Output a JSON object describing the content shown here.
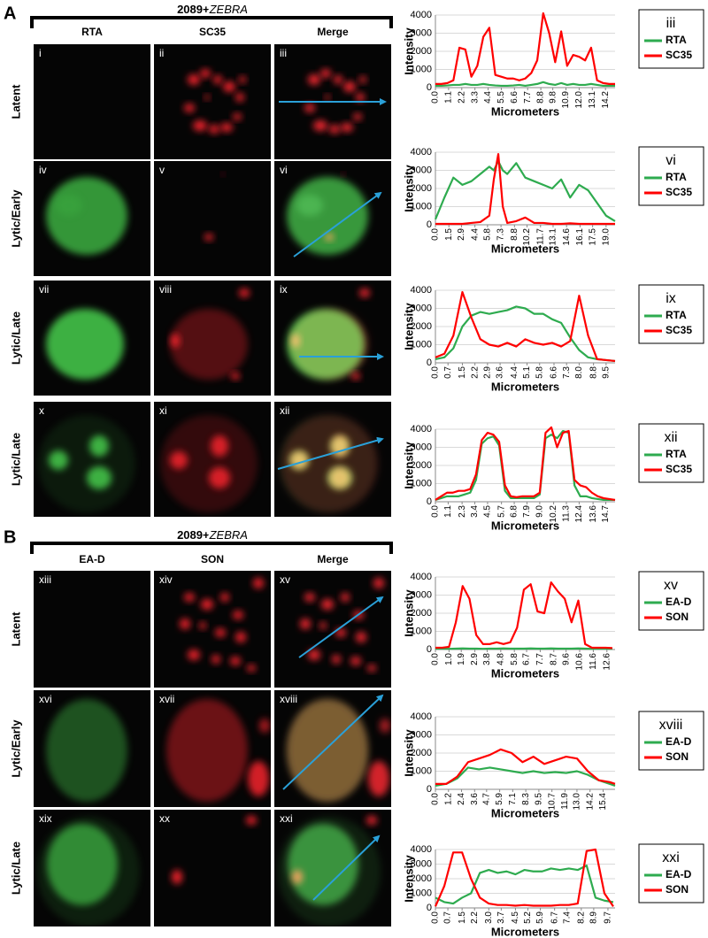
{
  "panel_a": {
    "letter": "A",
    "header_prefix": "2089+",
    "header_gene": "ZEBRA",
    "columns": [
      "RTA",
      "SC35",
      "Merge"
    ],
    "rows": [
      "Latent",
      "Lytic/Early",
      "Lytic/Late",
      "Lytic/Late"
    ],
    "image_labels": [
      [
        "i",
        "ii",
        "iii"
      ],
      [
        "iv",
        "v",
        "vi"
      ],
      [
        "vii",
        "viii",
        "ix"
      ],
      [
        "x",
        "xi",
        "xii"
      ]
    ]
  },
  "panel_b": {
    "letter": "B",
    "header_prefix": "2089+",
    "header_gene": "ZEBRA",
    "columns": [
      "EA-D",
      "SON",
      "Merge"
    ],
    "rows": [
      "Latent",
      "Lytic/Early",
      "Lytic/Late"
    ],
    "image_labels": [
      [
        "xiii",
        "xiv",
        "xv"
      ],
      [
        "xvi",
        "xvii",
        "xviii"
      ],
      [
        "xix",
        "xx",
        "xxi"
      ]
    ]
  },
  "chart_data": [
    {
      "type": "line",
      "title": "iii",
      "x_label": "Micrometers",
      "y_label": "Intensity",
      "x": [
        0,
        0.5,
        1,
        1.5,
        2,
        2.5,
        3,
        3.5,
        4,
        4.5,
        5,
        5.5,
        6,
        6.5,
        7,
        7.5,
        8,
        8.5,
        9,
        9.5,
        10,
        10.5,
        11,
        11.5,
        12,
        12.5,
        13,
        13.5,
        14,
        14.5,
        15
      ],
      "xlim": [
        0,
        15
      ],
      "xticks": [
        {
          "value": 0,
          "label": "0.0"
        },
        1.1,
        2.2,
        3.3,
        4.4,
        5.5,
        6.6,
        7.7,
        8.8,
        9.8,
        10.9,
        {
          "value": 12,
          "label": "12.0"
        },
        13.1,
        14.2
      ],
      "ylim": [
        0,
        4000
      ],
      "yticks": [
        0,
        1000,
        2000,
        3000,
        4000
      ],
      "grid": true,
      "series": [
        {
          "name": "RTA",
          "color": "#2eab4f",
          "values": [
            100,
            100,
            120,
            150,
            150,
            200,
            150,
            150,
            200,
            150,
            120,
            100,
            100,
            120,
            150,
            100,
            150,
            200,
            300,
            200,
            150,
            250,
            150,
            200,
            150,
            150,
            200,
            150,
            100,
            100,
            100
          ]
        },
        {
          "name": "SC35",
          "color": "#ff0000",
          "values": [
            200,
            200,
            250,
            400,
            2200,
            2100,
            600,
            1200,
            2800,
            3300,
            700,
            600,
            500,
            500,
            400,
            500,
            800,
            1500,
            4100,
            3000,
            1400,
            3100,
            1200,
            1800,
            1700,
            1500,
            2200,
            400,
            250,
            200,
            200
          ]
        }
      ]
    },
    {
      "type": "line",
      "title": "vi",
      "x_label": "Micrometers",
      "y_label": "Intensity",
      "x": [
        0,
        1,
        2,
        3,
        4,
        5,
        6,
        6.5,
        7,
        7.5,
        8,
        9,
        10,
        11,
        12,
        13,
        14,
        15,
        16,
        17,
        18,
        19,
        20
      ],
      "xlim": [
        0,
        20
      ],
      "xticks": [
        {
          "value": 0,
          "label": "0.0"
        },
        1.5,
        2.9,
        4.4,
        5.8,
        7.3,
        8.8,
        10.2,
        11.7,
        13.1,
        14.6,
        16.1,
        17.5,
        {
          "value": 19,
          "label": "19.0"
        }
      ],
      "ylim": [
        0,
        4000
      ],
      "yticks": [
        0,
        1000,
        2000,
        3000,
        4000
      ],
      "grid": true,
      "series": [
        {
          "name": "RTA",
          "color": "#2eab4f",
          "values": [
            300,
            1500,
            2600,
            2200,
            2400,
            2800,
            3200,
            3000,
            3500,
            3000,
            2800,
            3400,
            2600,
            2400,
            2200,
            2000,
            2500,
            1500,
            2200,
            1900,
            1200,
            500,
            200
          ]
        },
        {
          "name": "SC35",
          "color": "#ff0000",
          "values": [
            50,
            50,
            50,
            50,
            100,
            150,
            500,
            2500,
            3900,
            1000,
            100,
            200,
            400,
            100,
            100,
            50,
            50,
            80,
            50,
            50,
            50,
            50,
            50
          ]
        }
      ]
    },
    {
      "type": "line",
      "title": "ix",
      "x_label": "Micrometers",
      "y_label": "Intensity",
      "x": [
        0,
        0.5,
        1,
        1.5,
        2,
        2.5,
        3,
        3.5,
        4,
        4.5,
        5,
        5.5,
        6,
        6.5,
        7,
        7.5,
        8,
        8.5,
        9,
        9.5,
        10
      ],
      "xlim": [
        0,
        10
      ],
      "xticks": [
        {
          "value": 0,
          "label": "0.0"
        },
        0.7,
        1.5,
        2.2,
        2.9,
        3.6,
        4.4,
        5.1,
        5.8,
        6.6,
        7.3,
        {
          "value": 8,
          "label": "8.0"
        },
        8.8,
        9.5
      ],
      "ylim": [
        0,
        4000
      ],
      "yticks": [
        0,
        1000,
        2000,
        3000,
        4000
      ],
      "grid": true,
      "series": [
        {
          "name": "RTA",
          "color": "#2eab4f",
          "values": [
            200,
            300,
            800,
            2000,
            2600,
            2800,
            2700,
            2800,
            2900,
            3100,
            3000,
            2700,
            2700,
            2400,
            2200,
            1400,
            700,
            300,
            200,
            150,
            100
          ]
        },
        {
          "name": "SC35",
          "color": "#ff0000",
          "values": [
            300,
            500,
            1500,
            3900,
            2500,
            1300,
            1000,
            900,
            1100,
            900,
            1300,
            1100,
            1000,
            1100,
            900,
            1200,
            3700,
            1500,
            200,
            150,
            100
          ]
        }
      ]
    },
    {
      "type": "line",
      "title": "xii",
      "x_label": "Micrometers",
      "y_label": "Intensity",
      "x": [
        0,
        0.5,
        1,
        1.5,
        2,
        2.5,
        3,
        3.5,
        4,
        4.5,
        5,
        5.5,
        6,
        6.5,
        7,
        7.5,
        8,
        8.5,
        9,
        9.5,
        10,
        10.5,
        11,
        11.5,
        12,
        12.5,
        13,
        13.5,
        14,
        14.5,
        15,
        15.5
      ],
      "xlim": [
        0,
        15.5
      ],
      "xticks": [
        {
          "value": 0,
          "label": "0.0"
        },
        1.1,
        2.3,
        3.4,
        4.5,
        5.7,
        6.8,
        7.9,
        {
          "value": 9,
          "label": "9.0"
        },
        10.2,
        11.3,
        12.4,
        13.6,
        14.7
      ],
      "ylim": [
        0,
        4000
      ],
      "yticks": [
        0,
        1000,
        2000,
        3000,
        4000
      ],
      "grid": true,
      "series": [
        {
          "name": "RTA",
          "color": "#2eab4f",
          "values": [
            100,
            200,
            300,
            300,
            300,
            400,
            500,
            1200,
            3200,
            3500,
            3600,
            3100,
            600,
            200,
            200,
            200,
            200,
            200,
            400,
            3500,
            3700,
            3500,
            3900,
            3800,
            900,
            300,
            300,
            200,
            150,
            100,
            100,
            100
          ]
        },
        {
          "name": "SC35",
          "color": "#ff0000",
          "values": [
            100,
            300,
            500,
            500,
            600,
            600,
            700,
            1500,
            3400,
            3800,
            3700,
            3300,
            900,
            300,
            250,
            300,
            300,
            300,
            500,
            3800,
            4100,
            3000,
            3800,
            3900,
            1200,
            900,
            800,
            500,
            300,
            200,
            150,
            100
          ]
        }
      ]
    },
    {
      "type": "line",
      "title": "xv",
      "x_label": "Micrometers",
      "y_label": "Intensity",
      "x": [
        0,
        0.5,
        1,
        1.5,
        2,
        2.5,
        3,
        3.5,
        4,
        4.5,
        5,
        5.5,
        6,
        6.5,
        7,
        7.5,
        8,
        8.5,
        9,
        9.5,
        10,
        10.5,
        11,
        11.5,
        12,
        12.5,
        13
      ],
      "xlim": [
        0,
        13.2
      ],
      "xticks": [
        {
          "value": 0,
          "label": "0.0"
        },
        {
          "value": 1,
          "label": "1.0"
        },
        1.9,
        2.9,
        3.8,
        4.8,
        5.8,
        6.7,
        7.7,
        8.7,
        9.6,
        10.6,
        11.6,
        12.6
      ],
      "ylim": [
        0,
        4000
      ],
      "yticks": [
        0,
        1000,
        2000,
        3000,
        4000
      ],
      "grid": true,
      "series": [
        {
          "name": "EA-D",
          "color": "#2eab4f",
          "values": [
            50,
            50,
            40,
            50,
            60,
            50,
            50,
            40,
            50,
            50,
            60,
            50,
            50,
            50,
            60,
            50,
            50,
            60,
            50,
            50,
            50,
            60,
            50,
            40,
            50,
            50,
            40
          ]
        },
        {
          "name": "SON",
          "color": "#ff0000",
          "values": [
            100,
            100,
            150,
            1500,
            3500,
            2800,
            800,
            300,
            300,
            400,
            300,
            400,
            1200,
            3300,
            3600,
            2100,
            2000,
            3700,
            3200,
            2800,
            1500,
            2700,
            300,
            100,
            100,
            100,
            80
          ]
        }
      ]
    },
    {
      "type": "line",
      "title": "xviii",
      "x_label": "Micrometers",
      "y_label": "Intensity",
      "x": [
        0,
        1,
        2,
        3,
        4,
        5,
        6,
        7,
        8,
        9,
        10,
        11,
        12,
        13,
        14,
        15,
        16,
        16.5
      ],
      "xlim": [
        0,
        16.5
      ],
      "xticks": [
        {
          "value": 0,
          "label": "0.0"
        },
        1.2,
        2.4,
        3.6,
        4.7,
        5.9,
        7.1,
        8.3,
        9.5,
        10.7,
        11.9,
        {
          "value": 13,
          "label": "13.0"
        },
        14.2,
        15.4
      ],
      "ylim": [
        0,
        4000
      ],
      "yticks": [
        0,
        1000,
        2000,
        3000,
        4000
      ],
      "grid": true,
      "series": [
        {
          "name": "EA-D",
          "color": "#2eab4f",
          "values": [
            200,
            300,
            600,
            1200,
            1100,
            1200,
            1100,
            1000,
            900,
            1000,
            900,
            950,
            900,
            1000,
            800,
            500,
            300,
            200
          ]
        },
        {
          "name": "SON",
          "color": "#ff0000",
          "values": [
            300,
            300,
            700,
            1500,
            1700,
            1900,
            2200,
            2000,
            1500,
            1800,
            1400,
            1600,
            1800,
            1700,
            1000,
            500,
            400,
            300
          ]
        }
      ]
    },
    {
      "type": "line",
      "title": "xxi",
      "x_label": "Micrometers",
      "y_label": "Intensity",
      "x": [
        0,
        0.5,
        1,
        1.5,
        2,
        2.5,
        3,
        3.5,
        4,
        4.5,
        5,
        5.5,
        6,
        6.5,
        7,
        7.5,
        8,
        8.5,
        9,
        9.5,
        10
      ],
      "xlim": [
        0,
        10.1
      ],
      "xticks": [
        {
          "value": 0,
          "label": "0.0"
        },
        0.7,
        1.5,
        2.2,
        {
          "value": 3,
          "label": "3.0"
        },
        3.7,
        4.5,
        5.2,
        5.9,
        6.7,
        7.4,
        8.2,
        8.9,
        9.7
      ],
      "ylim": [
        0,
        4000
      ],
      "yticks": [
        0,
        1000,
        2000,
        3000,
        4000
      ],
      "grid": true,
      "series": [
        {
          "name": "EA-D",
          "color": "#2eab4f",
          "values": [
            700,
            400,
            300,
            700,
            1000,
            2400,
            2600,
            2400,
            2500,
            2300,
            2600,
            2500,
            2500,
            2700,
            2600,
            2700,
            2600,
            2900,
            700,
            500,
            400
          ]
        },
        {
          "name": "SON",
          "color": "#ff0000",
          "values": [
            100,
            1500,
            3800,
            3800,
            2000,
            700,
            300,
            200,
            200,
            150,
            200,
            150,
            150,
            150,
            200,
            200,
            300,
            3900,
            4000,
            1000,
            100
          ]
        }
      ]
    }
  ]
}
